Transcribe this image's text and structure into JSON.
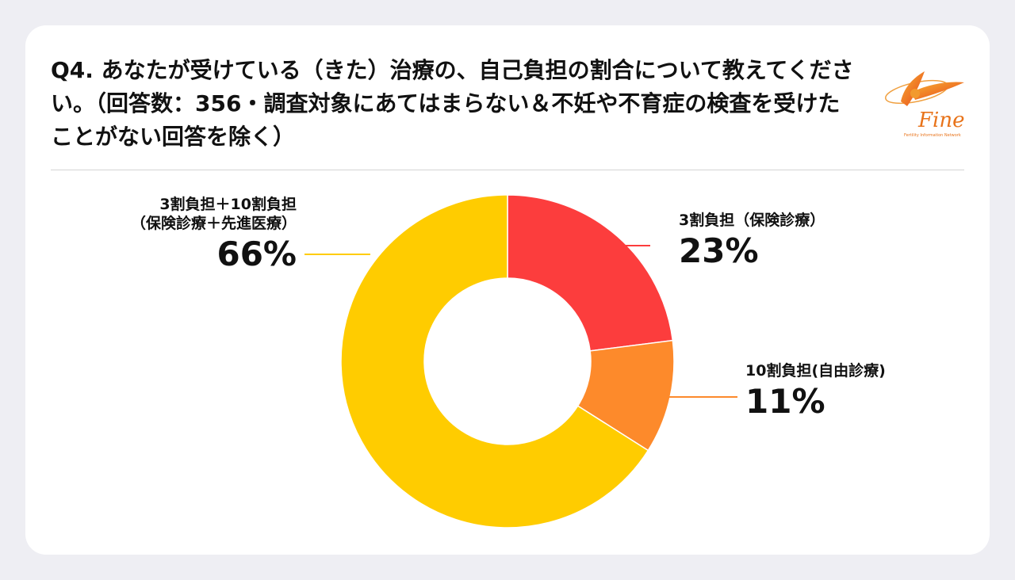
{
  "title": "Q4. あなたが受けている（きた）治療の、自己負担の割合について教えてください。（回答数：356・調査対象にあてはまらない＆不妊や不育症の検査を受けたことがない回答を除く）",
  "logo": {
    "text": "Fine",
    "tagline": "Fertility Information Network",
    "color": "#e8731a"
  },
  "chart_data": {
    "type": "pie",
    "donut": true,
    "slices": [
      {
        "label_lines": [
          "3割負担（保険診療）"
        ],
        "value": 23,
        "display": "23%",
        "color": "#fc3d3d"
      },
      {
        "label_lines": [
          "10割負担(自由診療)"
        ],
        "value": 11,
        "display": "11%",
        "color": "#fd8a2b"
      },
      {
        "label_lines": [
          "3割負担＋10割負担",
          "（保険診療＋先進医療）"
        ],
        "value": 66,
        "display": "66%",
        "color": "#ffcc00"
      }
    ]
  }
}
